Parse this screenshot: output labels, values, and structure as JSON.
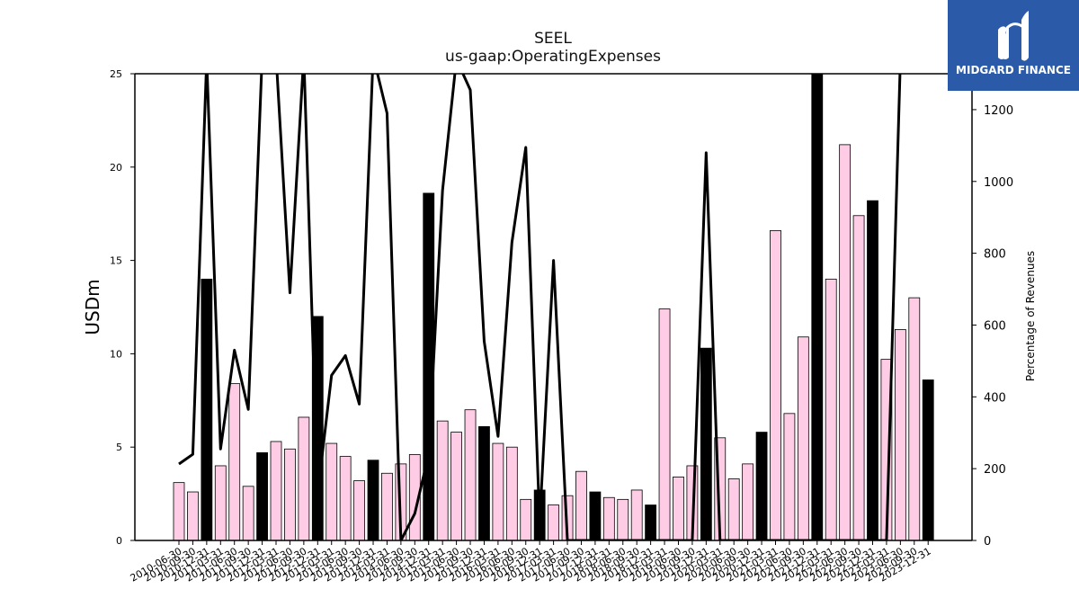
{
  "header": {
    "title": "SEEL",
    "subtitle": "us-gaap:OperatingExpenses"
  },
  "logo": {
    "text": "MIDGARD FINANCE",
    "color": "#2b5aa8"
  },
  "chart_data": {
    "type": "bar",
    "ylabel": "USDm",
    "y2label": "Percentage of Revenues",
    "ylim": [
      0,
      25
    ],
    "y2lim": [
      0,
      1300
    ],
    "yticks": [
      0,
      5,
      10,
      15,
      20,
      25
    ],
    "y2ticks": [
      0,
      200,
      400,
      600,
      800,
      1000,
      1200
    ],
    "colors": {
      "quarterly": "#ffcce6",
      "annual": "#000000",
      "line": "#000000"
    },
    "categories": [
      "2010-06-30",
      "2010-09-30",
      "2010-12-31",
      "2011-03-31",
      "2011-06-30",
      "2011-09-30",
      "2011-12-31",
      "2012-03-31",
      "2012-06-30",
      "2012-09-30",
      "2012-12-31",
      "2013-03-31",
      "2013-06-30",
      "2013-09-30",
      "2013-12-31",
      "2014-03-31",
      "2014-06-30",
      "2014-09-30",
      "2014-12-31",
      "2015-03-31",
      "2015-06-30",
      "2015-09-30",
      "2015-12-31",
      "2016-03-31",
      "2016-06-30",
      "2016-09-30",
      "2016-12-31",
      "2017-03-31",
      "2017-06-30",
      "2017-09-30",
      "2017-12-31",
      "2018-03-31",
      "2018-06-30",
      "2018-09-30",
      "2018-12-31",
      "2019-03-31",
      "2019-06-30",
      "2019-09-30",
      "2019-12-31",
      "2020-03-31",
      "2020-06-30",
      "2020-09-30",
      "2020-12-31",
      "2021-03-31",
      "2021-06-30",
      "2021-09-30",
      "2021-12-31",
      "2022-03-31",
      "2022-06-30",
      "2022-09-30",
      "2022-12-31",
      "2023-03-31",
      "2023-06-30",
      "2023-09-30",
      "2023-12-31"
    ],
    "values": [
      3.1,
      2.6,
      14.0,
      4.0,
      8.4,
      2.9,
      4.7,
      5.3,
      4.9,
      6.6,
      12.0,
      5.2,
      4.5,
      3.2,
      4.3,
      3.6,
      4.1,
      4.6,
      18.6,
      6.4,
      5.8,
      7.0,
      6.1,
      5.2,
      5.0,
      2.2,
      2.7,
      1.9,
      2.4,
      3.7,
      2.6,
      2.3,
      2.2,
      2.7,
      1.9,
      12.4,
      3.4,
      4.0,
      10.3,
      5.5,
      3.3,
      4.1,
      5.8,
      16.6,
      6.8,
      10.9,
      25.0,
      14.0,
      21.2,
      17.4,
      18.2,
      9.7,
      11.3,
      13.0,
      8.6
    ],
    "annual": [
      false,
      false,
      true,
      false,
      false,
      false,
      true,
      false,
      false,
      false,
      true,
      false,
      false,
      false,
      true,
      false,
      false,
      false,
      true,
      false,
      false,
      false,
      true,
      false,
      false,
      false,
      true,
      false,
      false,
      false,
      true,
      false,
      false,
      false,
      true,
      false,
      false,
      false,
      true,
      false,
      false,
      false,
      true,
      false,
      false,
      false,
      true,
      false,
      false,
      false,
      true,
      false,
      false,
      false,
      true
    ],
    "pct_revenue": [
      213,
      240,
      1340,
      255,
      530,
      365,
      1350,
      1350,
      690,
      1350,
      130,
      460,
      515,
      380,
      1350,
      1190,
      0,
      75,
      240,
      975,
      1340,
      1255,
      555,
      290,
      830,
      1095,
      50,
      780,
      0,
      0,
      0,
      0,
      0,
      0,
      0,
      0,
      0,
      0,
      1080,
      0,
      0,
      0,
      0,
      0,
      0,
      0,
      0,
      0,
      0,
      0,
      0,
      0,
      1340,
      1350,
      1350
    ]
  }
}
